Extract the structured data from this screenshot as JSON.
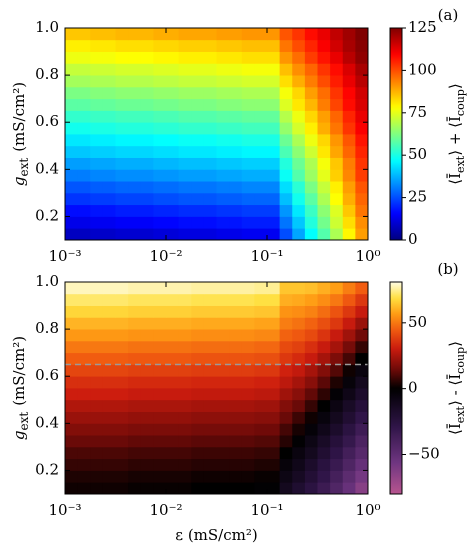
{
  "chart_data": [
    {
      "type": "heatmap",
      "panel_label": "(a)",
      "xscale": "log",
      "colormap": "jet",
      "ylabel": {
        "symbol": "g",
        "subscript": "ext",
        "unit": "(mS/cm²)"
      },
      "xlim": [
        0.001,
        1
      ],
      "ylim": [
        0.1,
        1.0
      ],
      "xticks": [
        {
          "value": 0.001,
          "label": "10⁻³"
        },
        {
          "value": 0.01,
          "label": "10⁻²"
        },
        {
          "value": 0.1,
          "label": "10⁻¹"
        },
        {
          "value": 1,
          "label": "10⁰"
        }
      ],
      "yticks": [
        0.2,
        0.4,
        0.6,
        0.8,
        {
          "value": 1,
          "label": "1.0"
        }
      ],
      "zlim": [
        0,
        125
      ],
      "zticks": [
        0,
        25,
        50,
        75,
        100,
        125
      ],
      "colorbar_label": [
        "⟨Ī",
        "ext",
        "⟩ + ⟨Ī",
        "coup",
        "⟩"
      ],
      "z": [
        [
          8,
          8,
          9,
          9,
          10,
          10,
          10,
          11,
          11,
          12,
          12,
          12,
          13,
          13,
          14,
          14,
          14,
          25,
          36,
          47,
          57,
          68,
          79,
          90
        ],
        [
          13,
          13,
          14,
          14,
          15,
          15,
          15,
          16,
          16,
          17,
          17,
          17,
          18,
          18,
          19,
          19,
          19,
          30,
          40,
          51,
          61,
          72,
          82,
          92
        ],
        [
          17,
          17,
          18,
          18,
          19,
          19,
          19,
          20,
          20,
          21,
          21,
          21,
          22,
          22,
          23,
          23,
          23,
          34,
          44,
          54,
          64,
          74,
          85,
          95
        ],
        [
          22,
          22,
          23,
          23,
          24,
          24,
          24,
          25,
          25,
          26,
          26,
          26,
          27,
          27,
          28,
          28,
          28,
          39,
          49,
          58,
          68,
          78,
          88,
          97
        ],
        [
          26,
          26,
          27,
          27,
          28,
          28,
          28,
          29,
          29,
          30,
          30,
          30,
          31,
          31,
          32,
          32,
          32,
          43,
          52,
          62,
          71,
          80,
          90,
          99
        ],
        [
          31,
          31,
          32,
          32,
          33,
          33,
          33,
          34,
          34,
          35,
          35,
          35,
          36,
          36,
          37,
          37,
          37,
          48,
          57,
          66,
          75,
          84,
          93,
          102
        ],
        [
          35,
          35,
          36,
          36,
          37,
          37,
          37,
          38,
          38,
          39,
          39,
          39,
          40,
          40,
          41,
          41,
          41,
          51,
          60,
          68,
          77,
          85,
          94,
          103
        ],
        [
          40,
          40,
          41,
          41,
          42,
          42,
          42,
          43,
          43,
          44,
          44,
          44,
          45,
          45,
          46,
          46,
          46,
          56,
          64,
          72,
          81,
          89,
          97,
          105
        ],
        [
          44,
          44,
          45,
          45,
          46,
          46,
          46,
          47,
          47,
          48,
          48,
          48,
          49,
          49,
          50,
          50,
          50,
          60,
          68,
          76,
          83,
          91,
          99,
          107
        ],
        [
          49,
          49,
          50,
          50,
          51,
          51,
          51,
          52,
          52,
          53,
          53,
          53,
          54,
          54,
          55,
          55,
          55,
          65,
          73,
          80,
          88,
          95,
          103,
          110
        ],
        [
          53,
          53,
          54,
          54,
          55,
          55,
          55,
          56,
          56,
          57,
          57,
          57,
          58,
          58,
          59,
          59,
          59,
          69,
          76,
          83,
          90,
          97,
          105,
          112
        ],
        [
          58,
          58,
          59,
          59,
          60,
          60,
          60,
          61,
          61,
          62,
          62,
          62,
          63,
          63,
          64,
          64,
          64,
          74,
          81,
          87,
          94,
          101,
          108,
          114
        ],
        [
          62,
          62,
          63,
          63,
          64,
          64,
          64,
          65,
          65,
          66,
          66,
          66,
          67,
          67,
          68,
          68,
          68,
          77,
          83,
          90,
          96,
          103,
          109,
          115
        ],
        [
          67,
          67,
          68,
          68,
          69,
          69,
          69,
          70,
          70,
          71,
          71,
          71,
          72,
          72,
          73,
          73,
          73,
          82,
          88,
          94,
          100,
          106,
          112,
          118
        ],
        [
          71,
          71,
          72,
          72,
          73,
          73,
          73,
          74,
          74,
          75,
          75,
          75,
          76,
          76,
          77,
          77,
          77,
          86,
          92,
          97,
          103,
          108,
          114,
          120
        ],
        [
          76,
          76,
          77,
          77,
          78,
          78,
          78,
          79,
          79,
          80,
          80,
          80,
          81,
          81,
          82,
          82,
          82,
          91,
          96,
          102,
          107,
          112,
          118,
          123
        ],
        [
          80,
          80,
          81,
          81,
          82,
          82,
          82,
          83,
          83,
          84,
          84,
          84,
          85,
          85,
          86,
          86,
          86,
          95,
          100,
          105,
          110,
          115,
          120,
          124
        ],
        [
          85,
          85,
          86,
          86,
          87,
          87,
          87,
          88,
          88,
          89,
          89,
          89,
          90,
          90,
          91,
          91,
          91,
          99,
          103,
          108,
          112,
          117,
          121,
          125
        ]
      ]
    },
    {
      "type": "heatmap",
      "panel_label": "(b)",
      "xscale": "log",
      "colormap": "diverging-fire",
      "ylabel": {
        "symbol": "g",
        "subscript": "ext",
        "unit": "(mS/cm²)"
      },
      "xlabel": "ε (mS/cm²)",
      "xlim": [
        0.001,
        1
      ],
      "ylim": [
        0.1,
        1.0
      ],
      "xticks": [
        {
          "value": 0.001,
          "label": "10⁻³"
        },
        {
          "value": 0.01,
          "label": "10⁻²"
        },
        {
          "value": 0.1,
          "label": "10⁻¹"
        },
        {
          "value": 1,
          "label": "10⁰"
        }
      ],
      "yticks": [
        0.2,
        0.4,
        0.6,
        0.8,
        {
          "value": 1,
          "label": "1.0"
        }
      ],
      "hline": 0.65,
      "zlim": [
        -80,
        81
      ],
      "zticks": [
        {
          "value": -50,
          "label": "−50"
        },
        0,
        50
      ],
      "colorbar_label": [
        "⟨Ī",
        "ext",
        "⟩ - ⟨Ī",
        "coup",
        "⟩"
      ],
      "z": [
        [
          2,
          2,
          2,
          2,
          2,
          1,
          1,
          1,
          1,
          1,
          0,
          0,
          0,
          0,
          0,
          -1,
          -1,
          -12,
          -19,
          -26,
          -34,
          -43,
          -53,
          -64
        ],
        [
          4,
          4,
          4,
          4,
          4,
          3,
          3,
          3,
          3,
          3,
          2,
          2,
          2,
          2,
          2,
          1,
          1,
          -8,
          -14,
          -21,
          -29,
          -38,
          -48,
          -58
        ],
        [
          7,
          7,
          7,
          7,
          7,
          6,
          6,
          6,
          6,
          6,
          5,
          5,
          5,
          5,
          5,
          4,
          4,
          -4,
          -10,
          -17,
          -25,
          -33,
          -42,
          -52
        ],
        [
          10,
          10,
          10,
          10,
          10,
          9,
          9,
          9,
          9,
          9,
          8,
          8,
          8,
          8,
          8,
          7,
          7,
          0,
          -6,
          -12,
          -20,
          -28,
          -37,
          -46
        ],
        [
          14,
          14,
          14,
          14,
          14,
          13,
          13,
          13,
          13,
          13,
          12,
          12,
          12,
          12,
          12,
          11,
          11,
          5,
          -1,
          -8,
          -15,
          -23,
          -31,
          -41
        ],
        [
          18,
          18,
          18,
          18,
          18,
          17,
          17,
          17,
          17,
          17,
          16,
          16,
          16,
          16,
          16,
          15,
          15,
          9,
          3,
          -3,
          -10,
          -17,
          -26,
          -35
        ],
        [
          22,
          22,
          22,
          22,
          22,
          21,
          21,
          21,
          21,
          21,
          20,
          20,
          20,
          20,
          20,
          19,
          19,
          14,
          8,
          2,
          -5,
          -12,
          -20,
          -29
        ],
        [
          26,
          26,
          26,
          26,
          26,
          25,
          25,
          25,
          25,
          25,
          24,
          24,
          24,
          24,
          24,
          23,
          23,
          18,
          14,
          7,
          0,
          -7,
          -15,
          -23
        ],
        [
          31,
          31,
          31,
          31,
          31,
          30,
          30,
          30,
          30,
          30,
          29,
          29,
          29,
          29,
          29,
          28,
          28,
          23,
          19,
          13,
          6,
          -2,
          -9,
          -17
        ],
        [
          35,
          35,
          35,
          35,
          35,
          34,
          34,
          34,
          34,
          34,
          33,
          33,
          33,
          33,
          33,
          32,
          32,
          28,
          24,
          19,
          12,
          4,
          -4,
          -12
        ],
        [
          40,
          40,
          40,
          40,
          40,
          39,
          39,
          39,
          39,
          39,
          38,
          38,
          38,
          38,
          38,
          37,
          37,
          32,
          29,
          24,
          18,
          11,
          2,
          -6
        ],
        [
          45,
          45,
          45,
          45,
          45,
          44,
          44,
          44,
          44,
          44,
          43,
          43,
          43,
          43,
          43,
          42,
          42,
          37,
          34,
          30,
          24,
          17,
          9,
          0
        ],
        [
          50,
          50,
          50,
          50,
          50,
          49,
          49,
          49,
          49,
          49,
          48,
          48,
          48,
          48,
          48,
          47,
          47,
          41,
          39,
          35,
          30,
          24,
          16,
          7
        ],
        [
          56,
          56,
          56,
          56,
          56,
          55,
          55,
          55,
          55,
          55,
          54,
          54,
          54,
          54,
          54,
          53,
          53,
          46,
          44,
          41,
          36,
          30,
          23,
          15
        ],
        [
          61,
          61,
          61,
          61,
          61,
          60,
          60,
          60,
          60,
          60,
          59,
          59,
          59,
          59,
          59,
          58,
          58,
          51,
          49,
          46,
          42,
          37,
          30,
          22
        ],
        [
          67,
          67,
          67,
          67,
          67,
          66,
          66,
          66,
          66,
          66,
          65,
          65,
          65,
          65,
          65,
          64,
          64,
          55,
          54,
          52,
          48,
          43,
          37,
          30
        ],
        [
          72,
          72,
          72,
          72,
          72,
          71,
          71,
          71,
          71,
          71,
          70,
          70,
          70,
          70,
          70,
          69,
          69,
          60,
          59,
          57,
          54,
          50,
          44,
          37
        ],
        [
          78,
          78,
          78,
          78,
          78,
          77,
          77,
          77,
          77,
          77,
          76,
          76,
          76,
          76,
          76,
          75,
          75,
          64,
          64,
          63,
          60,
          57,
          51,
          45
        ]
      ]
    }
  ]
}
